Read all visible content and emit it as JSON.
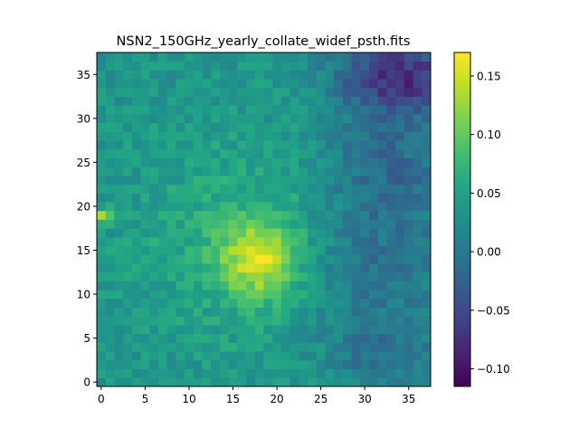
{
  "chart_data": {
    "type": "heatmap",
    "title": "NSN2_150GHz_yearly_collate_widef_psth.fits",
    "xlabel": "",
    "ylabel": "",
    "x_range": [
      -0.5,
      37.5
    ],
    "y_range": [
      -0.5,
      37.5
    ],
    "xticks": [
      0,
      5,
      10,
      15,
      20,
      25,
      30,
      35
    ],
    "yticks": [
      0,
      5,
      10,
      15,
      20,
      25,
      30,
      35
    ],
    "grid": false,
    "colormap": "viridis",
    "colorbar": {
      "range": [
        -0.115,
        0.17
      ],
      "ticks": [
        -0.1,
        -0.05,
        0.0,
        0.05,
        0.1,
        0.15
      ],
      "tick_labels": [
        "−0.10",
        "−0.05",
        "0.00",
        "0.05",
        "0.10",
        "0.15"
      ]
    },
    "grid_size": [
      38,
      38
    ],
    "model": {
      "background": 0.035,
      "components": [
        {
          "x": 18.0,
          "y": 14.0,
          "sigma_x": 3.0,
          "sigma_y": 3.0,
          "amplitude": 0.1
        },
        {
          "x": 17.0,
          "y": 16.0,
          "sigma_x": 9.0,
          "sigma_y": 8.0,
          "amplitude": 0.03
        },
        {
          "x": 0.0,
          "y": 19.0,
          "sigma_x": 1.0,
          "sigma_y": 0.6,
          "amplitude": 0.09
        },
        {
          "x": 34.0,
          "y": 35.0,
          "sigma_x": 5.0,
          "sigma_y": 3.0,
          "amplitude": -0.11
        },
        {
          "x": 31.0,
          "y": 13.0,
          "sigma_x": 6.0,
          "sigma_y": 6.0,
          "amplitude": -0.045
        },
        {
          "x": 33.0,
          "y": 25.0,
          "sigma_x": 5.0,
          "sigma_y": 5.0,
          "amplitude": -0.05
        },
        {
          "x": 32.0,
          "y": 3.0,
          "sigma_x": 4.0,
          "sigma_y": 3.0,
          "amplitude": -0.04
        }
      ],
      "noise_amplitude": 0.02
    }
  }
}
